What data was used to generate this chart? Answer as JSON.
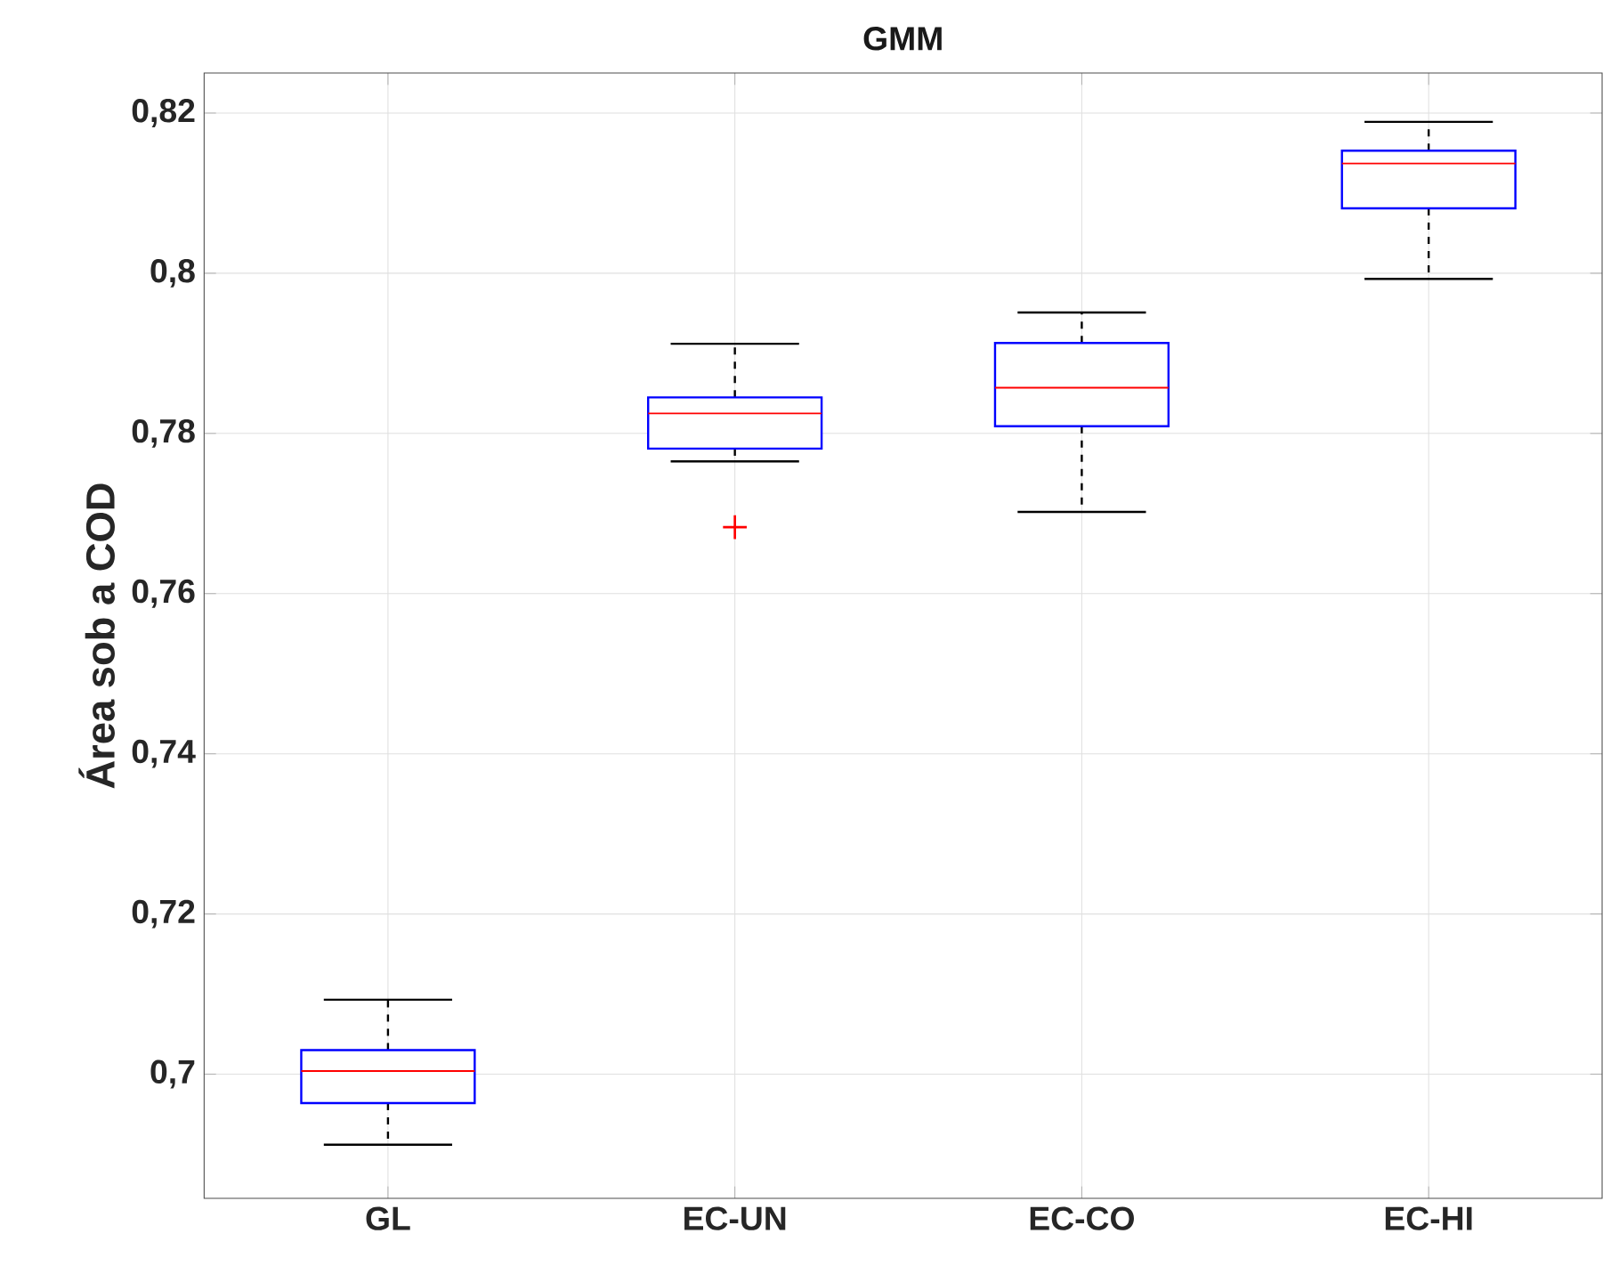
{
  "chart_data": {
    "type": "box",
    "title": "GMM",
    "ylabel": "Área sob a COD",
    "categories": [
      "GL",
      "EC-UN",
      "EC-CO",
      "EC-HI"
    ],
    "boxes": [
      {
        "low": 0.6912,
        "q1": 0.6964,
        "median": 0.7004,
        "q3": 0.703,
        "high": 0.7093
      },
      {
        "low": 0.7765,
        "q1": 0.7781,
        "median": 0.7825,
        "q3": 0.7845,
        "high": 0.7912,
        "outliers": [
          0.7683
        ]
      },
      {
        "low": 0.7702,
        "q1": 0.7809,
        "median": 0.7857,
        "q3": 0.7913,
        "high": 0.7951
      },
      {
        "low": 0.7993,
        "q1": 0.8081,
        "median": 0.8137,
        "q3": 0.8153,
        "high": 0.8189
      }
    ],
    "color": "#0000ff",
    "ylim": [
      0.6845,
      0.825
    ],
    "yticks": [
      {
        "value": 0.7,
        "label": "0,7"
      },
      {
        "value": 0.72,
        "label": "0,72"
      },
      {
        "value": 0.74,
        "label": "0,74"
      },
      {
        "value": 0.76,
        "label": "0,76"
      },
      {
        "value": 0.78,
        "label": "0,78"
      },
      {
        "value": 0.8,
        "label": "0,8"
      },
      {
        "value": 0.82,
        "label": "0,82"
      }
    ],
    "grid": true,
    "line_style": "dashed"
  }
}
